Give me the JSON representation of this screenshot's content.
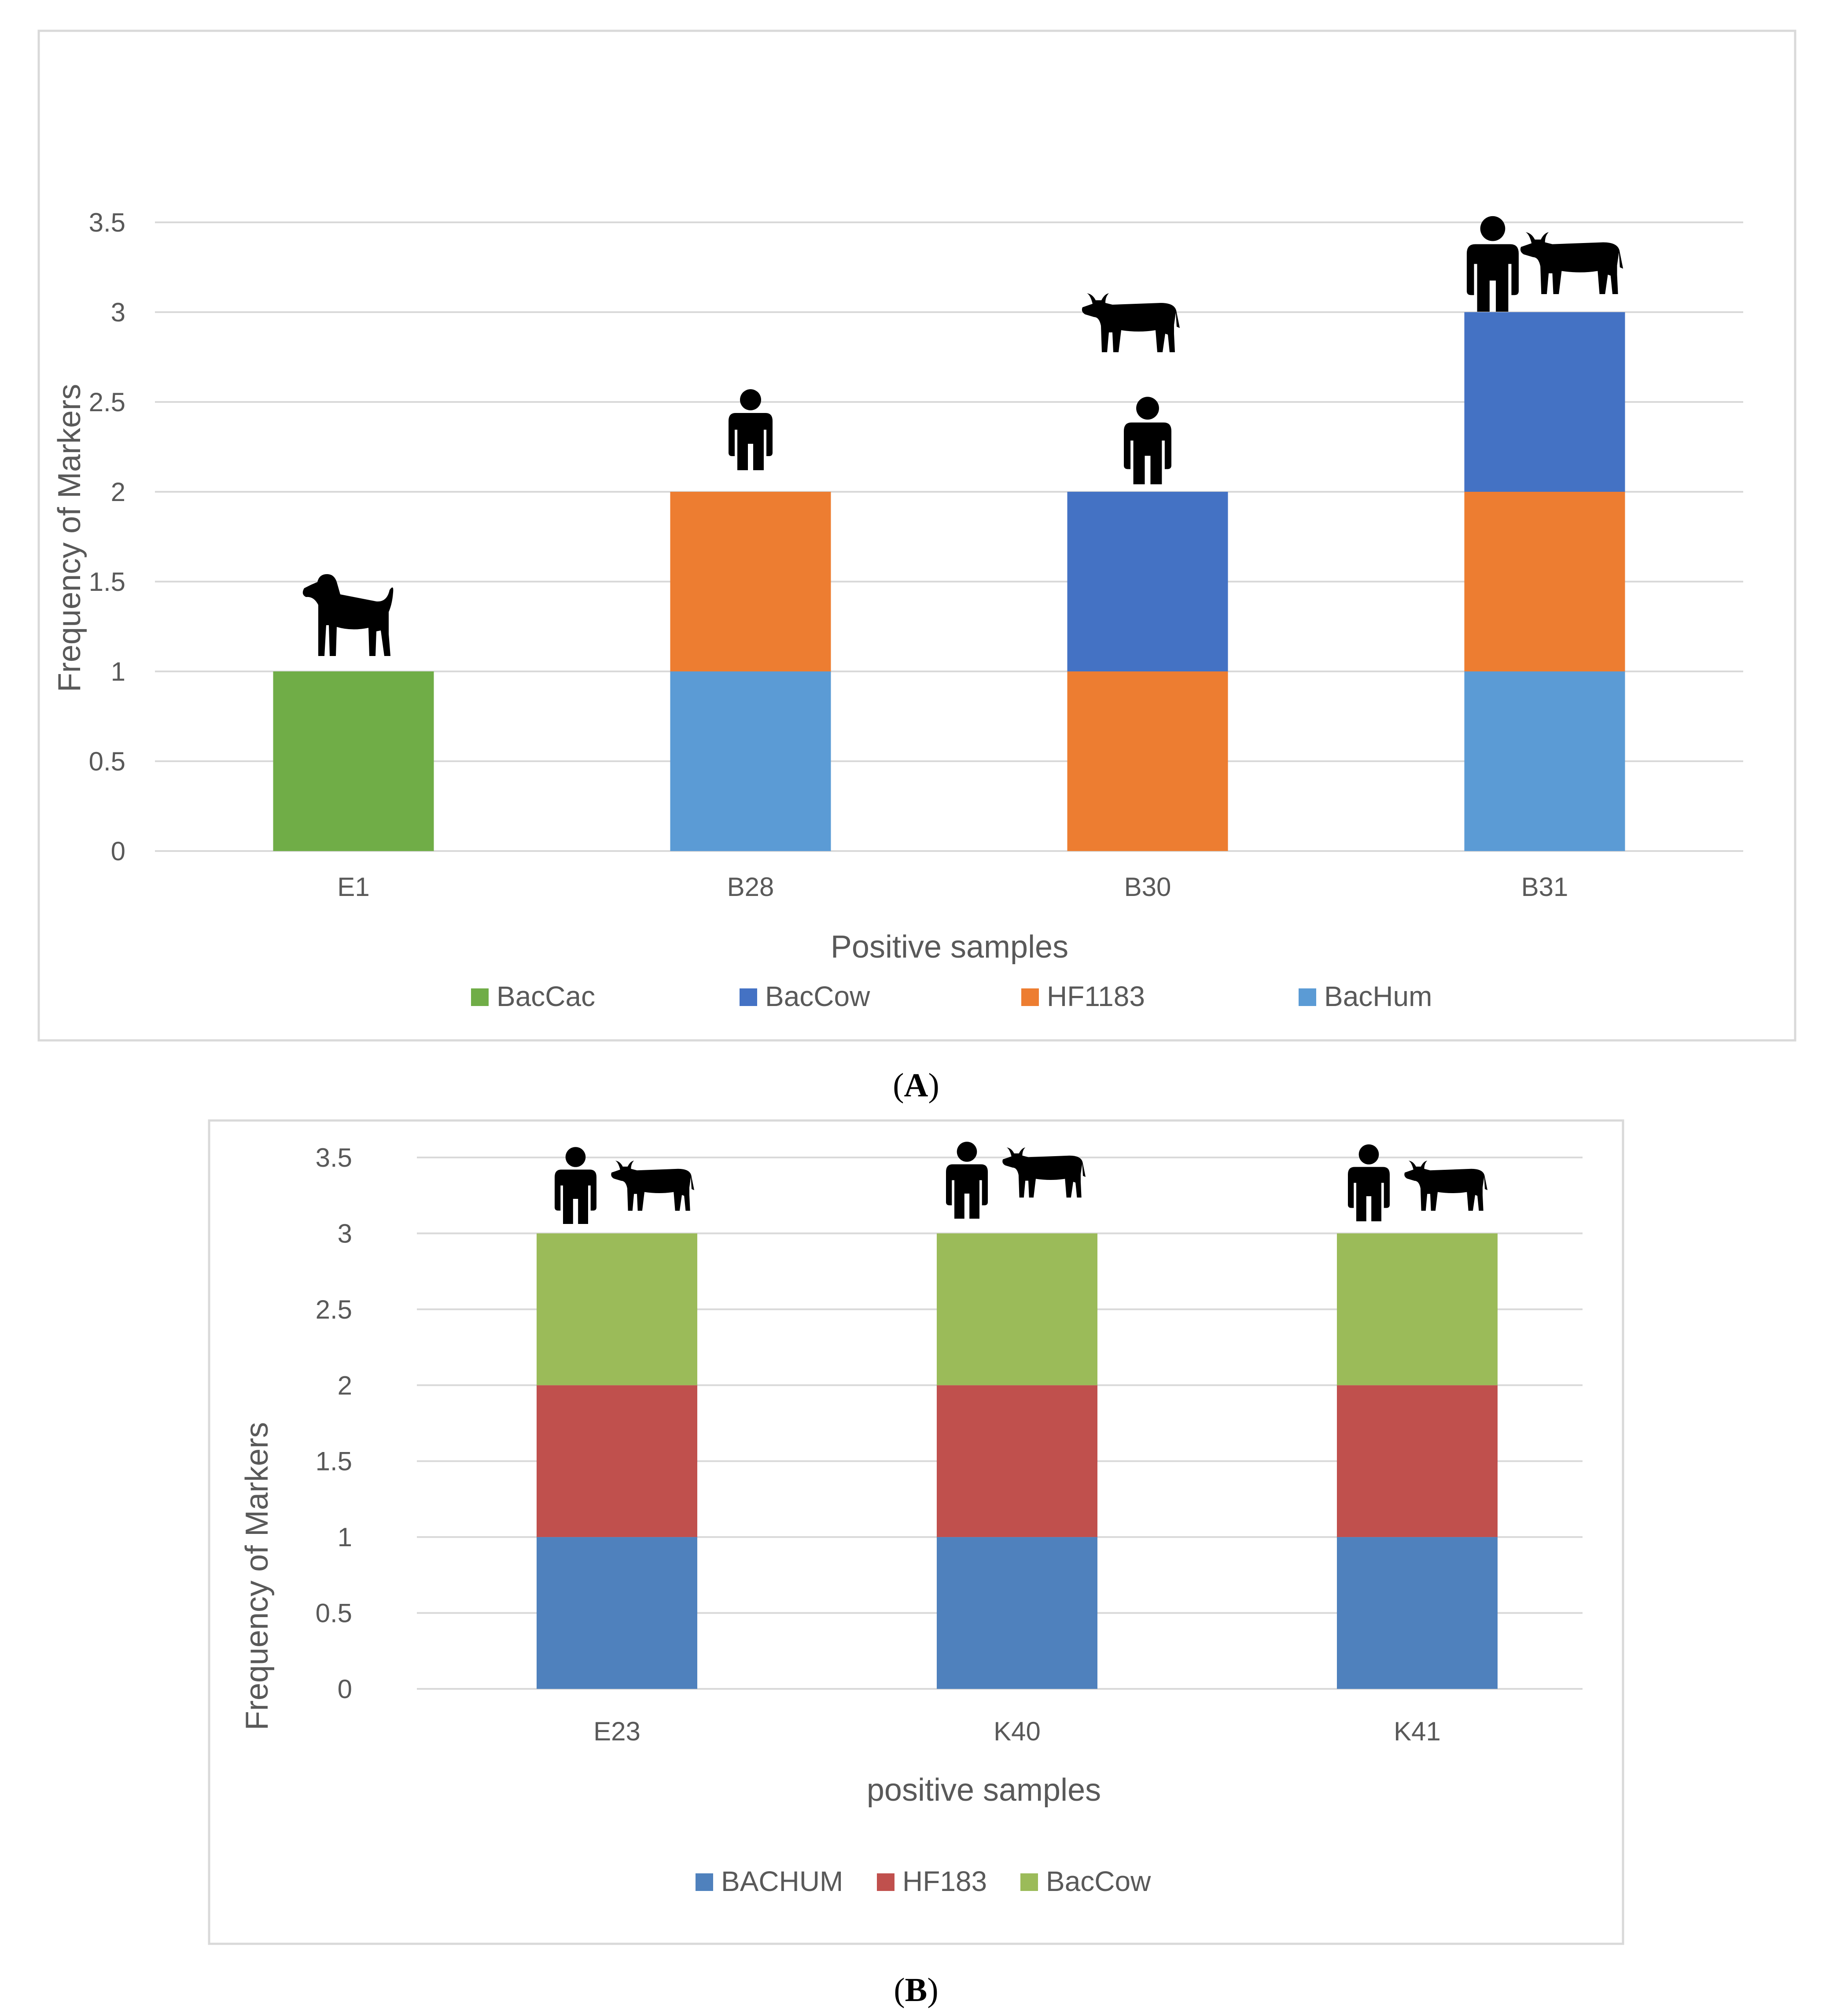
{
  "colors": {
    "gridline": "#d9d9d9",
    "frame": "#d9d9d9",
    "text": "#595959",
    "panelA_BacCac": "#70ad47",
    "panelA_BacCow": "#4472c4",
    "panelA_HF1183": "#ed7d31",
    "panelA_BacHum": "#5b9bd5",
    "panelB_BACHUM": "#4f81bd",
    "panelB_HF183": "#c0504d",
    "panelB_BacCow": "#9bbb59"
  },
  "captions": {
    "a": "(A)",
    "a_letter": "A",
    "b": "(B)",
    "b_letter": "B"
  },
  "chart_data": [
    {
      "panel": "A",
      "type": "bar",
      "stacked": true,
      "categories": [
        "E1",
        "B28",
        "B30",
        "B31"
      ],
      "series": [
        {
          "name": "BacHum",
          "values": [
            0,
            1,
            0,
            1
          ],
          "color": "#5b9bd5"
        },
        {
          "name": "HF1183",
          "values": [
            0,
            1,
            1,
            1
          ],
          "color": "#ed7d31"
        },
        {
          "name": "BacCow",
          "values": [
            0,
            0,
            1,
            1
          ],
          "color": "#4472c4"
        },
        {
          "name": "BacCac",
          "values": [
            1,
            0,
            0,
            0
          ],
          "color": "#70ad47"
        }
      ],
      "legend_order": [
        "BacCac",
        "BacCow",
        "HF1183",
        "BacHum"
      ],
      "legend_position": "bottom",
      "yticks": [
        "0",
        "0.5",
        "1",
        "1.5",
        "2",
        "2.5",
        "3",
        "3.5"
      ],
      "ylim": [
        0,
        3.5
      ],
      "xlabel": "Positive samples",
      "ylabel": "Frequency of Markers",
      "annotations": [
        {
          "category": "E1",
          "icons": [
            "dog-icon"
          ]
        },
        {
          "category": "B28",
          "icons": [
            "human-icon"
          ]
        },
        {
          "category": "B30",
          "icons": [
            "cow-icon",
            "human-icon"
          ]
        },
        {
          "category": "B31",
          "icons": [
            "human-icon",
            "cow-icon"
          ]
        }
      ],
      "grid": true
    },
    {
      "panel": "B",
      "type": "bar",
      "stacked": true,
      "categories": [
        "E23",
        "K40",
        "K41"
      ],
      "series": [
        {
          "name": "BACHUM",
          "values": [
            1,
            1,
            1
          ],
          "color": "#4f81bd"
        },
        {
          "name": "HF183",
          "values": [
            1,
            1,
            1
          ],
          "color": "#c0504d"
        },
        {
          "name": "BacCow",
          "values": [
            1,
            1,
            1
          ],
          "color": "#9bbb59"
        }
      ],
      "legend_order": [
        "BACHUM",
        "HF183",
        "BacCow"
      ],
      "legend_position": "bottom",
      "yticks": [
        "0",
        "0.5",
        "1",
        "1.5",
        "2",
        "2.5",
        "3",
        "3.5"
      ],
      "ylim": [
        0,
        3.5
      ],
      "xlabel": "positive samples",
      "ylabel": "Frequency of Markers",
      "annotations": [
        {
          "category": "E23",
          "icons": [
            "human-icon",
            "cow-icon"
          ]
        },
        {
          "category": "K40",
          "icons": [
            "human-icon",
            "cow-icon"
          ]
        },
        {
          "category": "K41",
          "icons": [
            "human-icon",
            "cow-icon"
          ]
        }
      ],
      "grid": true
    }
  ]
}
